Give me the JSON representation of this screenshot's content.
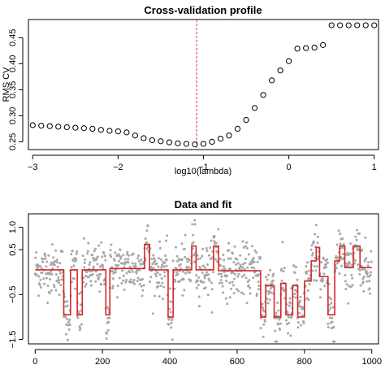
{
  "colors": {
    "cv_points": "#000000",
    "refline": "#e0392b",
    "data_points": "#a8a8a8",
    "fit_line": "#d62728"
  },
  "chart_data": [
    {
      "type": "scatter",
      "title": "Cross-validation profile",
      "xlabel": "log10(lambda)",
      "ylabel": "RMS CV",
      "xlim": [
        -3.05,
        1.05
      ],
      "ylim": [
        0.235,
        0.485
      ],
      "xticks": [
        -3,
        -2,
        -1,
        0,
        1
      ],
      "xtick_labels": [
        "−3",
        "−2",
        "−1",
        "0",
        "1"
      ],
      "yticks": [
        0.25,
        0.3,
        0.35,
        0.4,
        0.45
      ],
      "ytick_labels": [
        "0.25",
        "0.30",
        "0.35",
        "0.40",
        "0.45"
      ],
      "marker": "open-circle",
      "reference_line": {
        "orientation": "vertical",
        "x": -1.08,
        "style": "dashed"
      },
      "x": [
        -3.0,
        -2.9,
        -2.8,
        -2.7,
        -2.6,
        -2.5,
        -2.4,
        -2.3,
        -2.2,
        -2.1,
        -2.0,
        -1.9,
        -1.8,
        -1.7,
        -1.6,
        -1.5,
        -1.4,
        -1.3,
        -1.2,
        -1.1,
        -1.0,
        -0.9,
        -0.8,
        -0.7,
        -0.6,
        -0.5,
        -0.4,
        -0.3,
        -0.2,
        -0.1,
        0.0,
        0.1,
        0.2,
        0.3,
        0.4,
        0.5,
        0.6,
        0.7,
        0.8,
        0.9,
        1.0
      ],
      "y": [
        0.282,
        0.281,
        0.28,
        0.279,
        0.278,
        0.277,
        0.276,
        0.275,
        0.273,
        0.271,
        0.27,
        0.268,
        0.262,
        0.257,
        0.253,
        0.251,
        0.249,
        0.247,
        0.246,
        0.245,
        0.246,
        0.25,
        0.256,
        0.262,
        0.275,
        0.292,
        0.315,
        0.34,
        0.368,
        0.387,
        0.405,
        0.429,
        0.43,
        0.431,
        0.436,
        0.474,
        0.474,
        0.474,
        0.474,
        0.474,
        0.474
      ]
    },
    {
      "type": "scatter",
      "title": "Data and fit",
      "xlabel": "",
      "ylabel": "",
      "xlim": [
        -20,
        1020
      ],
      "ylim": [
        -1.6,
        1.3
      ],
      "xticks": [
        0,
        200,
        400,
        600,
        800,
        1000
      ],
      "xtick_labels": [
        "0",
        "200",
        "400",
        "600",
        "800",
        "1000"
      ],
      "yticks": [
        -1.5,
        -0.5,
        0.5,
        1.0
      ],
      "ytick_labels": [
        "−1.5",
        "−0.5",
        "0.5",
        "1.0"
      ],
      "series": [
        {
          "kind": "points",
          "n": 1000,
          "noise_sd": 0.28
        },
        {
          "kind": "step-fit",
          "segments": [
            {
              "start": 0,
              "end": 85,
              "value": 0.05
            },
            {
              "start": 85,
              "end": 105,
              "value": -0.95
            },
            {
              "start": 105,
              "end": 125,
              "value": 0.05
            },
            {
              "start": 125,
              "end": 140,
              "value": -0.95
            },
            {
              "start": 140,
              "end": 210,
              "value": 0.05
            },
            {
              "start": 210,
              "end": 222,
              "value": -0.95
            },
            {
              "start": 222,
              "end": 325,
              "value": 0.08
            },
            {
              "start": 325,
              "end": 340,
              "value": 0.62
            },
            {
              "start": 340,
              "end": 395,
              "value": 0.05
            },
            {
              "start": 395,
              "end": 410,
              "value": -1.0
            },
            {
              "start": 410,
              "end": 465,
              "value": 0.05
            },
            {
              "start": 465,
              "end": 478,
              "value": 0.58
            },
            {
              "start": 478,
              "end": 530,
              "value": 0.05
            },
            {
              "start": 530,
              "end": 545,
              "value": 0.58
            },
            {
              "start": 545,
              "end": 670,
              "value": 0.03
            },
            {
              "start": 670,
              "end": 685,
              "value": -1.0
            },
            {
              "start": 685,
              "end": 710,
              "value": -0.3
            },
            {
              "start": 710,
              "end": 730,
              "value": -1.0
            },
            {
              "start": 730,
              "end": 745,
              "value": -0.25
            },
            {
              "start": 745,
              "end": 765,
              "value": -0.95
            },
            {
              "start": 765,
              "end": 780,
              "value": -0.3
            },
            {
              "start": 780,
              "end": 800,
              "value": -1.0
            },
            {
              "start": 800,
              "end": 820,
              "value": -0.2
            },
            {
              "start": 820,
              "end": 835,
              "value": 0.25
            },
            {
              "start": 835,
              "end": 845,
              "value": 0.55
            },
            {
              "start": 845,
              "end": 870,
              "value": -0.1
            },
            {
              "start": 870,
              "end": 890,
              "value": -0.95
            },
            {
              "start": 890,
              "end": 905,
              "value": 0.25
            },
            {
              "start": 905,
              "end": 920,
              "value": 0.58
            },
            {
              "start": 920,
              "end": 945,
              "value": 0.1
            },
            {
              "start": 945,
              "end": 965,
              "value": 0.58
            },
            {
              "start": 965,
              "end": 1000,
              "value": 0.1
            }
          ]
        }
      ]
    }
  ]
}
